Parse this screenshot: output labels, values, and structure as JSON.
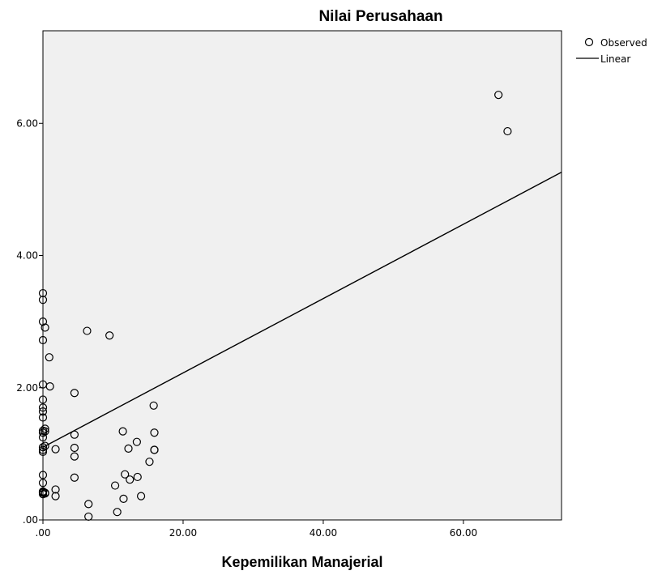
{
  "chart_data": {
    "type": "scatter",
    "title": "Nilai Perusahaan",
    "xlabel": "Kepemilikan Manajerial",
    "ylabel": "",
    "xlim": [
      0,
      74
    ],
    "ylim": [
      0,
      7.4
    ],
    "xticks": [
      0,
      20,
      40,
      60
    ],
    "xtick_labels": [
      ".00",
      "20.00",
      "40.00",
      "60.00"
    ],
    "yticks": [
      0,
      2,
      4,
      6
    ],
    "ytick_labels": [
      ".00",
      "2.00",
      "4.00",
      "6.00"
    ],
    "grid": false,
    "legend_position": "top-right",
    "legend": [
      "Observed",
      "Linear"
    ],
    "series": [
      {
        "name": "Observed",
        "type": "scatter",
        "x": [
          0.0,
          0.0,
          0.0,
          0.0,
          0.3,
          0.9,
          0.0,
          1.0,
          4.5,
          0.0,
          0.0,
          0.0,
          0.0,
          0.3,
          0.0,
          0.3,
          0.0,
          0.0,
          0.3,
          0.0,
          0.0,
          0.0,
          0.0,
          0.0,
          0.0,
          0.0,
          0.3,
          0.0,
          0.3,
          0.0,
          1.8,
          1.8,
          1.8,
          4.5,
          4.5,
          4.5,
          4.5,
          6.3,
          6.5,
          6.5,
          9.5,
          10.3,
          10.6,
          11.4,
          11.5,
          11.7,
          12.2,
          12.4,
          13.4,
          13.5,
          14.0,
          15.2,
          15.8,
          15.9,
          15.9,
          15.9,
          65.0,
          66.3
        ],
        "y": [
          3.43,
          3.33,
          3.0,
          2.72,
          2.91,
          2.46,
          2.05,
          2.02,
          1.92,
          1.82,
          1.7,
          1.64,
          1.55,
          1.38,
          1.35,
          1.34,
          1.32,
          1.25,
          1.12,
          1.1,
          1.06,
          1.03,
          0.68,
          0.56,
          0.43,
          0.41,
          0.41,
          0.42,
          0.4,
          0.39,
          1.07,
          0.46,
          0.36,
          1.29,
          1.09,
          0.96,
          0.64,
          2.86,
          0.24,
          0.05,
          2.79,
          0.52,
          0.12,
          1.34,
          0.32,
          0.69,
          1.08,
          0.61,
          1.18,
          0.65,
          0.36,
          0.88,
          1.73,
          1.32,
          1.06,
          1.06,
          6.43,
          5.88
        ]
      },
      {
        "name": "Linear",
        "type": "line",
        "x": [
          0,
          74
        ],
        "y": [
          1.1,
          5.26
        ]
      }
    ],
    "colors": {
      "plot_background": "#f0f0f0",
      "marker_stroke": "#000000",
      "line": "#000000"
    }
  }
}
